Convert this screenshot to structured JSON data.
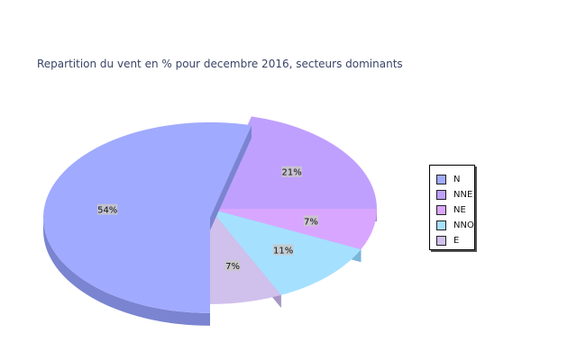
{
  "chart_data": {
    "type": "pie",
    "title": "Repartition du vent en % pour decembre 2016, secteurs dominants",
    "categories": [
      "N",
      "NNE",
      "NE",
      "NNO",
      "E"
    ],
    "values": [
      54,
      21,
      7,
      11,
      7
    ],
    "labels": [
      "54%",
      "21%",
      "7%",
      "11%",
      "7%"
    ],
    "colors": [
      "#a0aaff",
      "#c0a0ff",
      "#d9a6ff",
      "#a6e0ff",
      "#d0c0ec"
    ],
    "side_colors": [
      "#7a84d0",
      "#9a78d8",
      "#b07ed8",
      "#7ab6d8",
      "#a896c4"
    ],
    "exploded": "N",
    "legend_position": "right"
  }
}
